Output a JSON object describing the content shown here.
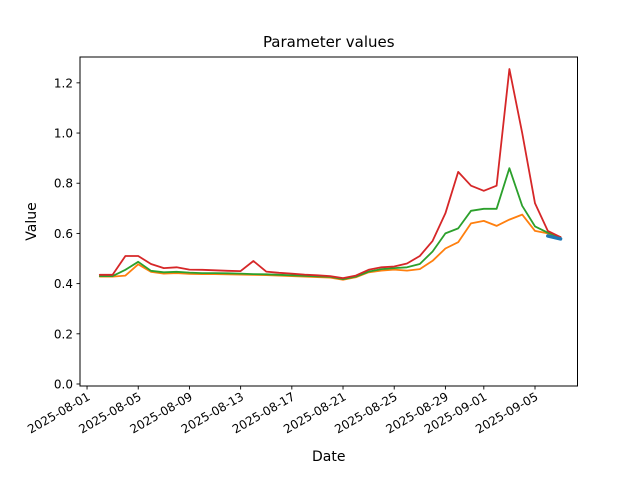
{
  "figure": {
    "title": "Parameter values",
    "xlabel": "Date",
    "ylabel": "Value"
  },
  "chart_data": {
    "type": "line",
    "title": "Parameter values",
    "xlabel": "Date",
    "ylabel": "Value",
    "grid": false,
    "legend": "none",
    "x": [
      "2025-08-02",
      "2025-08-03",
      "2025-08-04",
      "2025-08-05",
      "2025-08-06",
      "2025-08-07",
      "2025-08-08",
      "2025-08-09",
      "2025-08-10",
      "2025-08-11",
      "2025-08-12",
      "2025-08-13",
      "2025-08-14",
      "2025-08-15",
      "2025-08-16",
      "2025-08-17",
      "2025-08-18",
      "2025-08-19",
      "2025-08-20",
      "2025-08-21",
      "2025-08-22",
      "2025-08-23",
      "2025-08-24",
      "2025-08-25",
      "2025-08-26",
      "2025-08-27",
      "2025-08-28",
      "2025-08-29",
      "2025-08-30",
      "2025-08-31",
      "2025-09-01",
      "2025-09-02",
      "2025-09-03",
      "2025-09-04",
      "2025-09-05",
      "2025-09-06",
      "2025-09-07"
    ],
    "series": [
      {
        "name": "parameter-orange",
        "color": "#ff7f0e",
        "linewidth": 1.8,
        "values": [
          0.428,
          0.428,
          0.432,
          0.477,
          0.447,
          0.44,
          0.442,
          0.439,
          0.438,
          0.438,
          0.437,
          0.436,
          0.435,
          0.434,
          0.432,
          0.43,
          0.428,
          0.426,
          0.424,
          0.415,
          0.425,
          0.445,
          0.452,
          0.456,
          0.452,
          0.458,
          0.491,
          0.54,
          0.565,
          0.64,
          0.65,
          0.63,
          0.655,
          0.675,
          0.61,
          0.6,
          0.585
        ]
      },
      {
        "name": "parameter-green",
        "color": "#2ca02c",
        "linewidth": 1.8,
        "values": [
          0.43,
          0.43,
          0.455,
          0.487,
          0.451,
          0.445,
          0.447,
          0.444,
          0.442,
          0.442,
          0.441,
          0.44,
          0.438,
          0.437,
          0.435,
          0.433,
          0.431,
          0.429,
          0.427,
          0.418,
          0.428,
          0.448,
          0.458,
          0.462,
          0.465,
          0.478,
          0.528,
          0.6,
          0.62,
          0.69,
          0.698,
          0.698,
          0.86,
          0.71,
          0.628,
          0.603,
          0.585
        ]
      },
      {
        "name": "parameter-red",
        "color": "#d62728",
        "linewidth": 1.8,
        "values": [
          0.435,
          0.435,
          0.51,
          0.51,
          0.478,
          0.462,
          0.465,
          0.456,
          0.455,
          0.453,
          0.451,
          0.45,
          0.49,
          0.448,
          0.443,
          0.44,
          0.436,
          0.433,
          0.43,
          0.422,
          0.432,
          0.455,
          0.465,
          0.468,
          0.48,
          0.51,
          0.57,
          0.68,
          0.845,
          0.79,
          0.77,
          0.79,
          1.255,
          1.0,
          0.72,
          0.61,
          0.585
        ]
      },
      {
        "name": "parameter-blue",
        "color": "#1f77b4",
        "linewidth": 3.5,
        "values": [
          null,
          null,
          null,
          null,
          null,
          null,
          null,
          null,
          null,
          null,
          null,
          null,
          null,
          null,
          null,
          null,
          null,
          null,
          null,
          null,
          null,
          null,
          null,
          null,
          null,
          null,
          null,
          null,
          null,
          null,
          null,
          null,
          null,
          null,
          null,
          0.59,
          0.578
        ]
      }
    ],
    "yticks": [
      0.0,
      0.2,
      0.4,
      0.6,
      0.8,
      1.0,
      1.2
    ],
    "ytick_labels": [
      "0.0",
      "0.2",
      "0.4",
      "0.6",
      "0.8",
      "1.0",
      "1.2"
    ],
    "xticks": [
      {
        "label": "2025-08-01",
        "day_index": -1
      },
      {
        "label": "2025-08-05",
        "day_index": 3
      },
      {
        "label": "2025-08-09",
        "day_index": 7
      },
      {
        "label": "2025-08-13",
        "day_index": 11
      },
      {
        "label": "2025-08-17",
        "day_index": 15
      },
      {
        "label": "2025-08-21",
        "day_index": 19
      },
      {
        "label": "2025-08-25",
        "day_index": 23
      },
      {
        "label": "2025-08-29",
        "day_index": 27
      },
      {
        "label": "2025-09-01",
        "day_index": 30
      },
      {
        "label": "2025-09-05",
        "day_index": 34
      }
    ],
    "ylim": [
      -0.008,
      1.303
    ],
    "xlim_day_index": [
      -1.55,
      37.32
    ],
    "axis_color": "#000000"
  }
}
